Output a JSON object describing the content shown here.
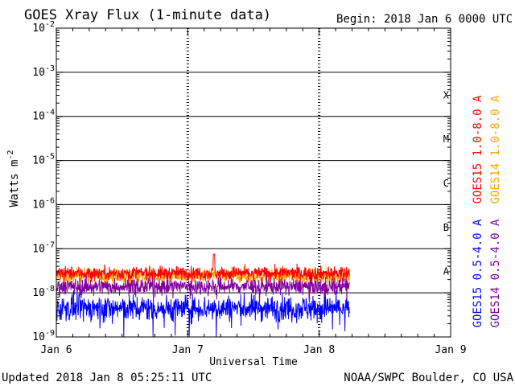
{
  "header": {
    "title": "GOES Xray Flux (1-minute data)",
    "begin": "Begin:  2018 Jan 6 0000 UTC"
  },
  "footer": {
    "updated": "Updated 2018 Jan  8 05:25:11 UTC",
    "credit": "NOAA/SWPC Boulder, CO USA"
  },
  "chart_data": {
    "type": "line",
    "title": "GOES Xray Flux (1-minute data)",
    "xlabel": "Universal Time",
    "ylabel": "Watts m",
    "ylabel_sup": "-2",
    "y_scale": "log",
    "ylim": [
      1e-09,
      0.01
    ],
    "x_ticks": [
      "Jan 6",
      "Jan 7",
      "Jan 8",
      "Jan 9"
    ],
    "x_range_days": [
      0,
      3
    ],
    "data_end_day": 2.23,
    "y_ticks": [
      {
        "base": "10",
        "exp": "-9"
      },
      {
        "base": "10",
        "exp": "-8"
      },
      {
        "base": "10",
        "exp": "-7"
      },
      {
        "base": "10",
        "exp": "-6"
      },
      {
        "base": "10",
        "exp": "-5"
      },
      {
        "base": "10",
        "exp": "-4"
      },
      {
        "base": "10",
        "exp": "-3"
      },
      {
        "base": "10",
        "exp": "-2"
      }
    ],
    "flare_classes": [
      "A",
      "B",
      "C",
      "M",
      "X"
    ],
    "grid": true,
    "series": [
      {
        "name": "GOES15 1.0-8.0 A",
        "color": "#ff0000",
        "level": 2.8e-08,
        "noise": 0.13,
        "spike": {
          "day": 1.2,
          "value": 7.5e-08
        }
      },
      {
        "name": "GOES14 1.0-8.0 A",
        "color": "#ffa500",
        "level": 2.4e-08,
        "noise": 0.14
      },
      {
        "name": "GOES15 0.5-4.0 A",
        "color": "#0000ff",
        "level": 4.5e-09,
        "noise": 0.25
      },
      {
        "name": "GOES14 0.5-4.0 A",
        "color": "#8000a0",
        "level": 1.4e-08,
        "noise": 0.16
      }
    ]
  }
}
